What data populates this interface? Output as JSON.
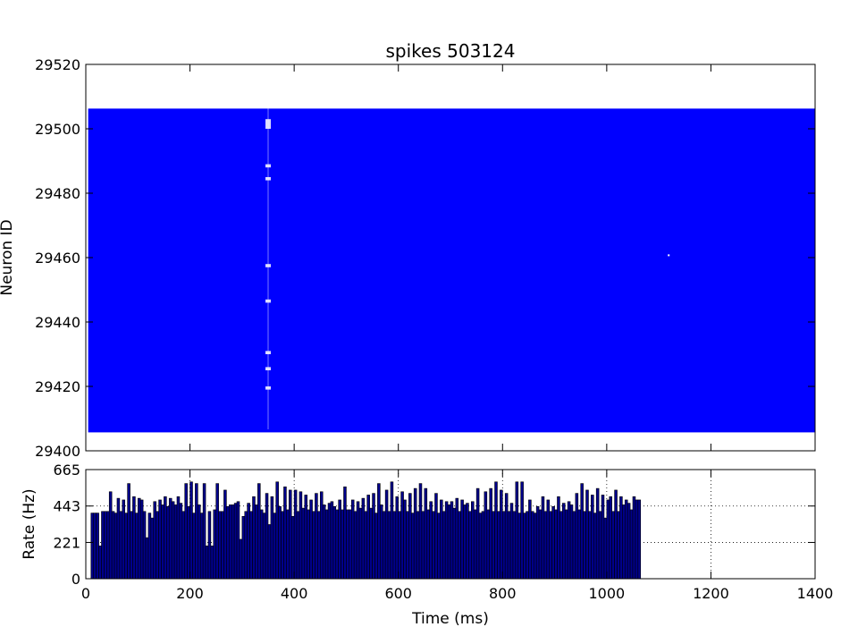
{
  "chart_data": [
    {
      "type": "scatter",
      "title": "spikes 503124",
      "xlabel": "",
      "ylabel": "Neuron ID",
      "xlim": [
        0,
        1400
      ],
      "ylim": [
        29400,
        29520
      ],
      "y_ticks": [
        "29400",
        "29420",
        "29440",
        "29460",
        "29480",
        "29500",
        "29520"
      ],
      "marker_color": "#0000ff",
      "grid": false,
      "series": [
        {
          "x_range": [
            8,
            1400
          ],
          "y_range": [
            29406,
            29506
          ]
        }
      ]
    },
    {
      "type": "bar",
      "title": "",
      "xlabel": "Time (ms)",
      "ylabel": "Rate (Hz)",
      "xlim": [
        0,
        1400
      ],
      "ylim": [
        0,
        665
      ],
      "x_ticks": [
        "0",
        "200",
        "400",
        "600",
        "800",
        "1000",
        "1200",
        "1400"
      ],
      "y_ticks": [
        "0",
        "221",
        "443",
        "665"
      ],
      "bar_color": "#00008b",
      "grid": true,
      "bin_width": 5,
      "x_start": 10,
      "values": [
        400,
        400,
        400,
        200,
        410,
        410,
        410,
        530,
        410,
        400,
        490,
        410,
        480,
        400,
        580,
        410,
        500,
        400,
        490,
        480,
        410,
        250,
        400,
        370,
        470,
        410,
        480,
        450,
        500,
        440,
        490,
        470,
        450,
        500,
        460,
        410,
        580,
        440,
        590,
        400,
        580,
        450,
        400,
        580,
        200,
        410,
        200,
        420,
        580,
        410,
        410,
        540,
        440,
        450,
        450,
        460,
        470,
        240,
        380,
        410,
        460,
        410,
        500,
        450,
        580,
        420,
        400,
        520,
        330,
        500,
        400,
        590,
        440,
        410,
        560,
        420,
        540,
        380,
        540,
        410,
        530,
        430,
        510,
        420,
        480,
        410,
        520,
        410,
        530,
        450,
        420,
        460,
        470,
        440,
        420,
        480,
        420,
        560,
        420,
        420,
        480,
        410,
        470,
        430,
        490,
        410,
        510,
        430,
        520,
        400,
        580,
        450,
        410,
        540,
        410,
        590,
        410,
        500,
        410,
        530,
        480,
        410,
        520,
        400,
        550,
        410,
        580,
        410,
        550,
        420,
        470,
        410,
        520,
        400,
        480,
        410,
        470,
        450,
        470,
        430,
        490,
        410,
        480,
        450,
        460,
        410,
        470,
        420,
        550,
        400,
        410,
        530,
        420,
        550,
        410,
        590,
        410,
        540,
        410,
        520,
        410,
        460,
        410,
        590,
        400,
        590,
        400,
        410,
        480,
        410,
        400,
        440,
        420,
        500,
        410,
        480,
        410,
        440,
        420,
        500,
        410,
        460,
        420,
        470,
        450,
        410,
        520,
        420,
        580,
        410,
        540,
        410,
        510,
        400,
        550,
        410,
        510,
        370,
        480,
        500,
        410,
        540,
        410,
        500,
        450,
        480,
        460,
        420,
        500,
        480,
        480
      ]
    }
  ]
}
